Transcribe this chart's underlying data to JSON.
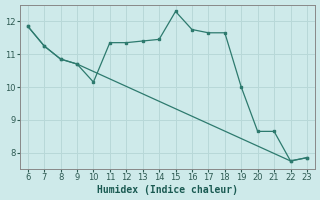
{
  "xlabel": "Humidex (Indice chaleur)",
  "bg_color": "#ceeaea",
  "line_color": "#2d7a6e",
  "grid_color": "#b8d8d8",
  "xlim": [
    5.5,
    23.5
  ],
  "ylim": [
    7.5,
    12.5
  ],
  "xticks": [
    6,
    7,
    8,
    9,
    10,
    11,
    12,
    13,
    14,
    15,
    16,
    17,
    18,
    19,
    20,
    21,
    22,
    23
  ],
  "yticks": [
    8,
    9,
    10,
    11,
    12
  ],
  "zigzag_x": [
    6,
    7,
    8,
    9,
    10,
    11,
    12,
    13,
    14,
    15,
    16,
    17,
    18,
    19,
    20,
    21,
    22,
    23
  ],
  "zigzag_y": [
    11.85,
    11.25,
    10.85,
    10.7,
    10.15,
    11.35,
    11.35,
    11.4,
    11.45,
    12.3,
    11.75,
    11.65,
    11.65,
    10.0,
    8.65,
    8.65,
    7.75,
    7.85
  ],
  "diag_x": [
    6,
    7,
    8,
    9,
    22,
    23
  ],
  "diag_y": [
    11.85,
    11.25,
    10.85,
    10.7,
    7.75,
    7.85
  ]
}
